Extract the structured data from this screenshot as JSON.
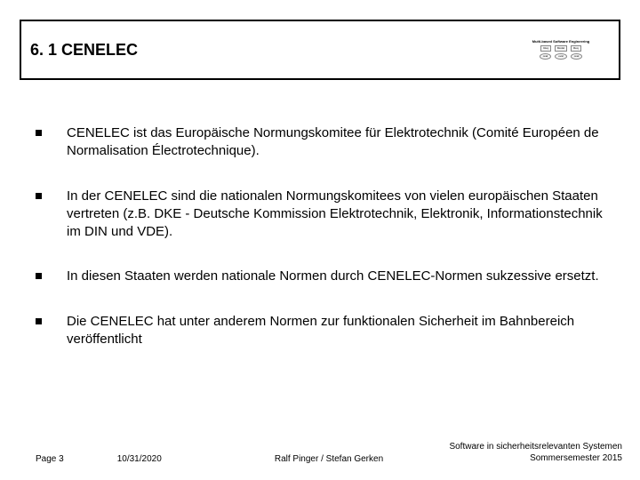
{
  "header": {
    "title": "6. 1 CENELEC",
    "logo": {
      "title": "Multi-based Software Engineering",
      "box1": "Req",
      "box2": "Model",
      "box3": "Req",
      "oval1": "oval",
      "oval2": "oval",
      "oval3": "oval"
    }
  },
  "bullets": [
    {
      "text": "CENELEC ist das Europäische Normungskomitee für Elektrotechnik (Comité Européen de Normalisation Électrotechnique)."
    },
    {
      "text": "In der CENELEC sind die nationalen Normungskomitees von vielen europäischen Staaten vertreten (z.B. DKE - Deutsche Kommission Elektrotechnik, Elektronik, Informationstechnik im DIN und VDE)."
    },
    {
      "text": "In diesen Staaten werden nationale Normen durch CENELEC-Normen sukzessive ersetzt."
    },
    {
      "text": "Die CENELEC hat unter anderem Normen zur funktionalen Sicherheit im Bahnbereich veröffentlicht"
    }
  ],
  "footer": {
    "page": "Page 3",
    "date": "10/31/2020",
    "authors": "Ralf Pinger / Stefan Gerken",
    "course_line1": "Software in sicherheitsrelevanten Systemen",
    "course_line2": "Sommersemester 2015"
  },
  "colors": {
    "text": "#000000",
    "background": "#ffffff",
    "border": "#000000"
  }
}
